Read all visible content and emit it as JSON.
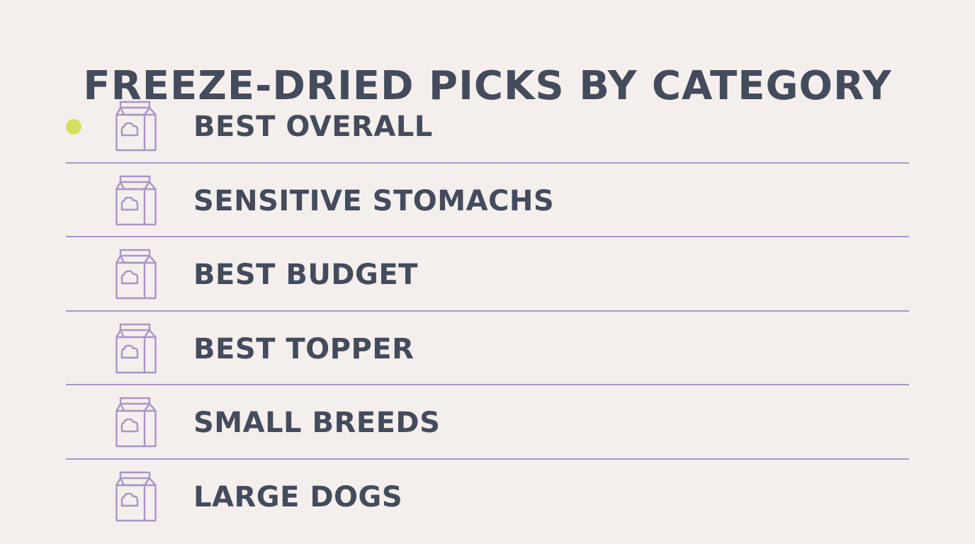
{
  "title": "FREEZE-DRIED PICKS BY CATEGORY",
  "colors": {
    "background": "#f4efec",
    "text": "#434b5c",
    "divider": "#a995c5",
    "icon": "#a995c5",
    "active_dot": "#d4df5e"
  },
  "items": [
    {
      "label": "BEST OVERALL",
      "icon": "food-bag-icon",
      "active": true
    },
    {
      "label": "SENSITIVE STOMACHS",
      "icon": "food-bag-icon",
      "active": false
    },
    {
      "label": "BEST BUDGET",
      "icon": "food-bag-icon",
      "active": false
    },
    {
      "label": "BEST TOPPER",
      "icon": "food-bag-icon",
      "active": false
    },
    {
      "label": "SMALL BREEDS",
      "icon": "food-bag-icon",
      "active": false
    },
    {
      "label": "LARGE DOGS",
      "icon": "food-bag-icon",
      "active": false
    }
  ]
}
